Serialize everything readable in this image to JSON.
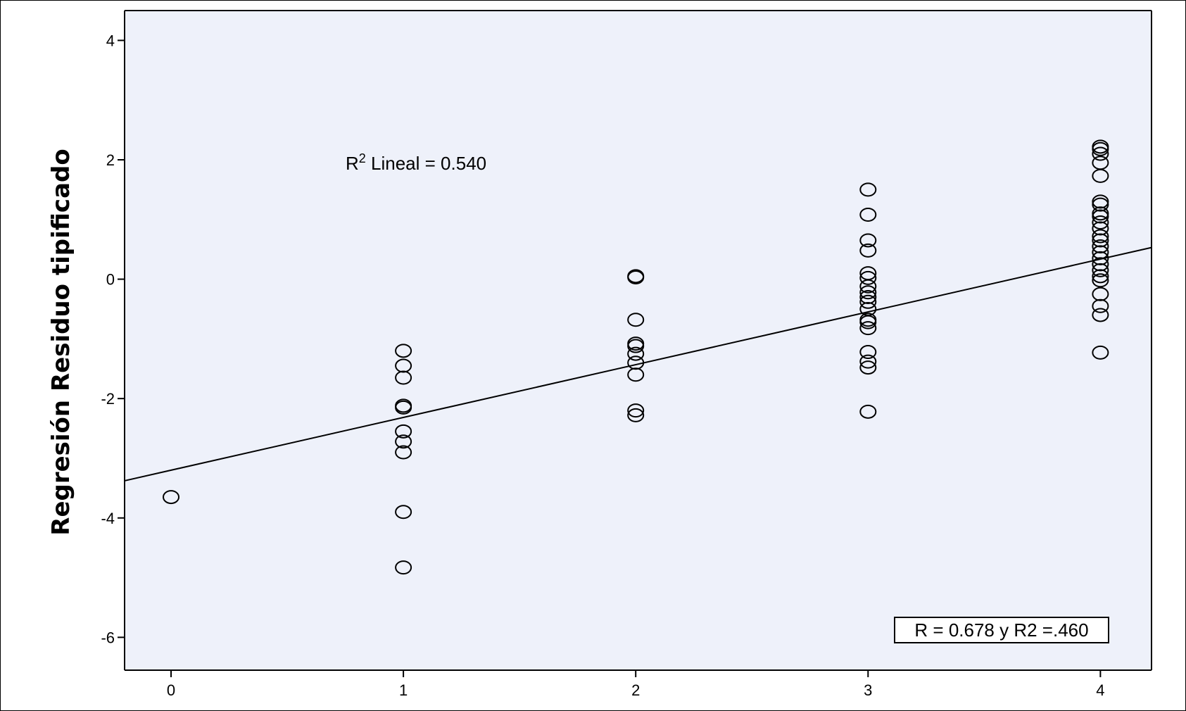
{
  "chart_data": {
    "type": "scatter",
    "title": "",
    "xlabel": "",
    "ylabel": "Regresión Residuo tipificado",
    "xlim": [
      -0.2,
      4.22
    ],
    "ylim": [
      -6.55,
      4.5
    ],
    "xticks": [
      0,
      1,
      2,
      3,
      4
    ],
    "yticks": [
      -6,
      -4,
      -2,
      0,
      2,
      4
    ],
    "grid": false,
    "background": "#eef1fa",
    "series": [
      {
        "points": [
          [
            0,
            -3.65
          ],
          [
            1,
            -1.2
          ],
          [
            1,
            -1.45
          ],
          [
            1,
            -1.65
          ],
          [
            1,
            -2.12
          ],
          [
            1,
            -2.15
          ],
          [
            1,
            -2.55
          ],
          [
            1,
            -2.72
          ],
          [
            1,
            -2.9
          ],
          [
            1,
            -3.9
          ],
          [
            1,
            -4.83
          ],
          [
            2,
            0.05
          ],
          [
            2,
            0.03
          ],
          [
            2,
            -0.68
          ],
          [
            2,
            -1.08
          ],
          [
            2,
            -1.12
          ],
          [
            2,
            -1.25
          ],
          [
            2,
            -1.4
          ],
          [
            2,
            -1.6
          ],
          [
            2,
            -2.2
          ],
          [
            2,
            -2.28
          ],
          [
            3,
            1.5
          ],
          [
            3,
            1.08
          ],
          [
            3,
            0.65
          ],
          [
            3,
            0.48
          ],
          [
            3,
            0.1
          ],
          [
            3,
            0.02
          ],
          [
            3,
            -0.12
          ],
          [
            3,
            -0.22
          ],
          [
            3,
            -0.3
          ],
          [
            3,
            -0.38
          ],
          [
            3,
            -0.5
          ],
          [
            3,
            -0.68
          ],
          [
            3,
            -0.72
          ],
          [
            3,
            -0.82
          ],
          [
            3,
            -1.22
          ],
          [
            3,
            -1.38
          ],
          [
            3,
            -1.48
          ],
          [
            3,
            -2.22
          ],
          [
            4,
            2.22
          ],
          [
            4,
            2.18
          ],
          [
            4,
            2.1
          ],
          [
            4,
            1.95
          ],
          [
            4,
            1.73
          ],
          [
            4,
            1.3
          ],
          [
            4,
            1.25
          ],
          [
            4,
            1.1
          ],
          [
            4,
            1.05
          ],
          [
            4,
            0.95
          ],
          [
            4,
            0.85
          ],
          [
            4,
            0.72
          ],
          [
            4,
            0.65
          ],
          [
            4,
            0.55
          ],
          [
            4,
            0.45
          ],
          [
            4,
            0.35
          ],
          [
            4,
            0.25
          ],
          [
            4,
            0.15
          ],
          [
            4,
            0.05
          ],
          [
            4,
            -0.02
          ],
          [
            4,
            -0.25
          ],
          [
            4,
            -0.45
          ],
          [
            4,
            -0.6
          ],
          [
            4,
            -1.23
          ]
        ]
      }
    ],
    "fit_line": {
      "type": "linear",
      "intercept": -3.2,
      "slope": 0.884
    },
    "annotations": {
      "r2_prefix": "R",
      "r2_sup": "2",
      "r2_text": " Lineal = 0.540",
      "stats_box": "R = 0.678 y R2 =.460"
    }
  }
}
